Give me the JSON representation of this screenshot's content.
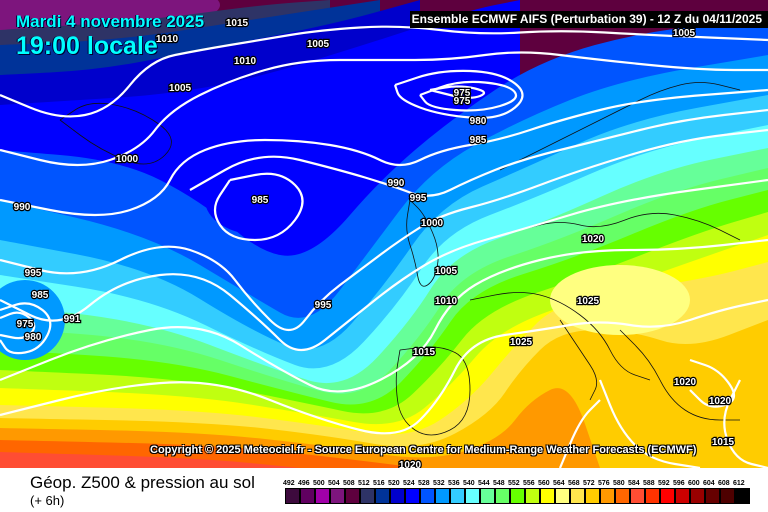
{
  "map": {
    "date_title": "Mardi 4 novembre 2025",
    "time_title": "19:00 locale",
    "header": "Ensemble ECMWF AIFS  (Perturbation 39)  -  12 Z du 04/11/2025",
    "copyright": "Copyright © 2025 Meteociel.fr - Source European Centre for Medium-Range Weather Forecasts (ECMWF)",
    "pressure_labels": [
      "1015",
      "1010",
      "1005",
      "1010",
      "1005",
      "975",
      "975",
      "980",
      "985",
      "1000",
      "990",
      "995",
      "985",
      "990",
      "1000",
      "1020",
      "995",
      "1005",
      "985",
      "1025",
      "1010",
      "995",
      "975",
      "991",
      "980",
      "1025",
      "1015",
      "1020",
      "1020",
      "1015",
      "1020",
      "1005"
    ]
  },
  "footer": {
    "parameter": "Géop. Z500 & pression au sol",
    "step": "(+ 6h)"
  },
  "legend": {
    "unit_values": [
      "492",
      "496",
      "500",
      "504",
      "508",
      "512",
      "516",
      "520",
      "524",
      "528",
      "532",
      "536",
      "540",
      "544",
      "548",
      "552",
      "556",
      "560",
      "564",
      "568",
      "572",
      "576",
      "580",
      "584",
      "588",
      "592",
      "596",
      "600",
      "604",
      "608",
      "612"
    ],
    "colors": [
      "#3d0a3d",
      "#600060",
      "#a000a8",
      "#7d157d",
      "#5e003e",
      "#2e3366",
      "#003399",
      "#0000cc",
      "#0000ff",
      "#0055ff",
      "#0099ff",
      "#33ccff",
      "#66ffff",
      "#66ff99",
      "#66ff66",
      "#66ff00",
      "#c0ff10",
      "#ffff00",
      "#ffff80",
      "#ffe64d",
      "#ffcc00",
      "#ff9900",
      "#ff6600",
      "#ff4d33",
      "#ff3300",
      "#ff0000",
      "#cc0000",
      "#990000",
      "#660000",
      "#4d0000",
      "#000000"
    ]
  }
}
